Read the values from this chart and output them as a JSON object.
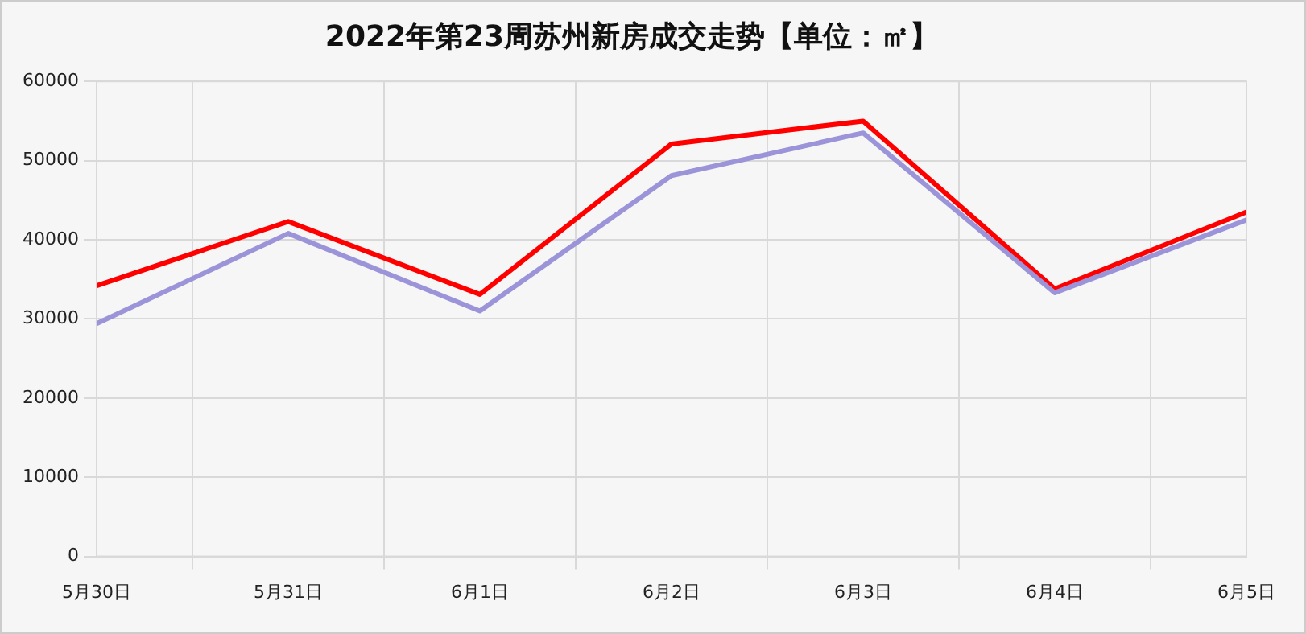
{
  "chart_data": {
    "type": "line",
    "title": "2022年第23周苏州新房成交走势【单位：㎡】",
    "categories": [
      "5月30日",
      "5月31日",
      "6月1日",
      "6月2日",
      "6月3日",
      "6月4日",
      "6月5日"
    ],
    "series": [
      {
        "color": "#9b94d9",
        "values": [
          29400,
          40800,
          31000,
          48100,
          53500,
          33300,
          42500
        ]
      },
      {
        "color": "#ff0000",
        "values": [
          34200,
          42300,
          33100,
          52100,
          55000,
          33800,
          43500
        ]
      }
    ],
    "ylim": [
      0,
      60000
    ],
    "yticks": [
      0,
      10000,
      20000,
      30000,
      40000,
      50000,
      60000
    ],
    "grid": true,
    "legend": false,
    "marker": "none",
    "line_style": "solid"
  }
}
